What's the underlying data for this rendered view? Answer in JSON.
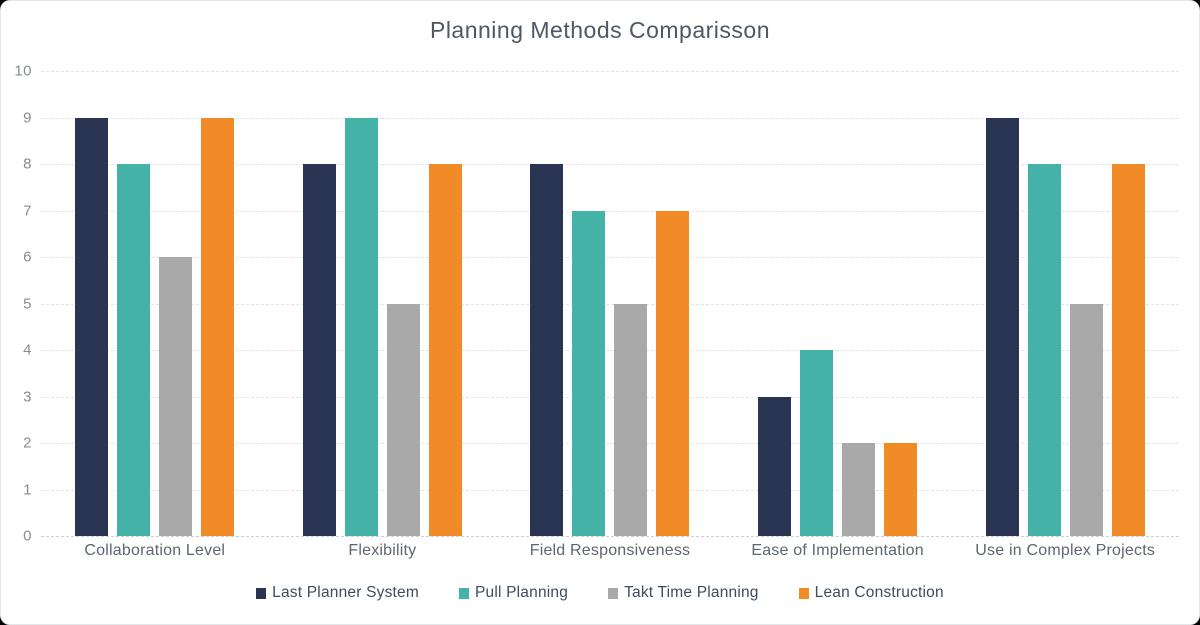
{
  "page": {
    "background": "#000000",
    "card_background": "#ffffff",
    "card_border": "#e4e6e8"
  },
  "chart_data": {
    "type": "bar",
    "title": "Planning Methods Comparisson",
    "categories": [
      "Collaboration Level",
      "Flexibility",
      "Field Responsiveness",
      "Ease of Implementation",
      "Use in Complex Projects"
    ],
    "series": [
      {
        "name": "Last Planner System",
        "color": "#2a3554",
        "values": [
          9,
          8,
          8,
          3,
          9
        ]
      },
      {
        "name": "Pull Planning",
        "color": "#45b2a8",
        "values": [
          8,
          9,
          7,
          4,
          8
        ]
      },
      {
        "name": "Takt Time Planning",
        "color": "#a9a9a9",
        "values": [
          6,
          5,
          5,
          2,
          5
        ]
      },
      {
        "name": "Lean Construction",
        "color": "#f08b27",
        "values": [
          9,
          8,
          7,
          2,
          8
        ]
      }
    ],
    "xlabel": "",
    "ylabel": "",
    "ylim": [
      0,
      10
    ],
    "yticks": [
      0,
      1,
      2,
      3,
      4,
      5,
      6,
      7,
      8,
      9,
      10
    ],
    "grid": true,
    "gridline_color": "#e4e4e4",
    "baseline_color": "#cfcfcf",
    "legend_position": "bottom"
  }
}
